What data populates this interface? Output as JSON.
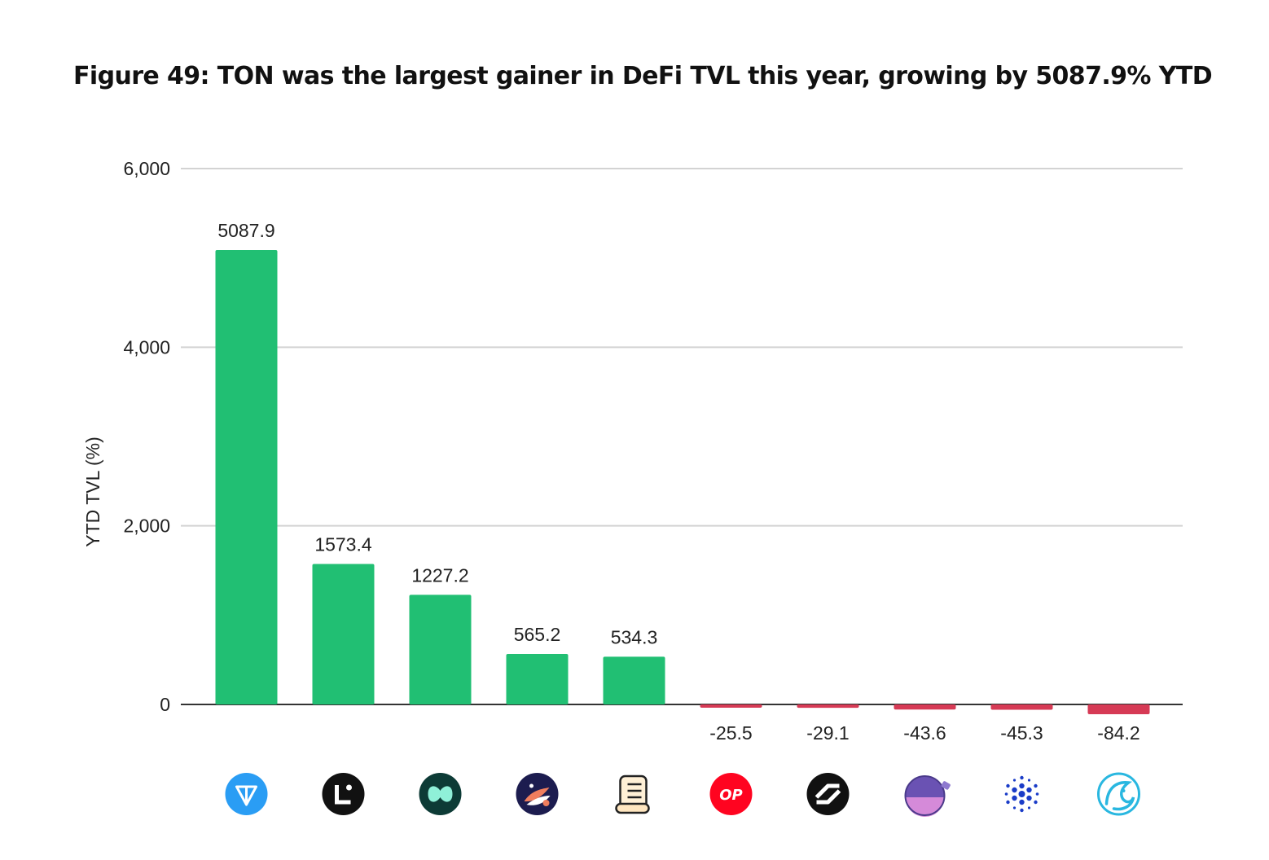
{
  "title": "Figure 49: TON was the largest gainer in DeFi TVL this year, growing by 5087.9% YTD",
  "colors": {
    "positive": "#21bf73",
    "negative": "#d63a55",
    "grid": "#d3d3d3",
    "zero_line": "#333333"
  },
  "chart_data": {
    "type": "bar",
    "categories": [
      "TON",
      "Linea",
      "Hyperliquid",
      "Starknet",
      "Scroll",
      "Optimism",
      "Thorchain",
      "Blast",
      "Cardano",
      "Kava"
    ],
    "icons": [
      "ton-icon",
      "linea-icon",
      "hyperliquid-icon",
      "starknet-icon",
      "scroll-icon",
      "optimism-icon",
      "thorchain-icon",
      "blast-icon",
      "cardano-icon",
      "kava-icon"
    ],
    "values": [
      5087.9,
      1573.4,
      1227.2,
      565.2,
      534.3,
      -25.5,
      -29.1,
      -43.6,
      -45.3,
      -84.2
    ],
    "value_labels": [
      "5087.9",
      "1573.4",
      "1227.2",
      "565.2",
      "534.3",
      "-25.5",
      "-29.1",
      "-43.6",
      "-45.3",
      "-84.2"
    ],
    "ylabel": "YTD TVL (%)",
    "xlabel": "",
    "ylim": [
      0,
      6000
    ],
    "yticks": [
      0,
      2000,
      4000,
      6000
    ],
    "ytick_labels": [
      "0",
      "2,000",
      "4,000",
      "6,000"
    ],
    "grid": true,
    "legend": "none"
  }
}
